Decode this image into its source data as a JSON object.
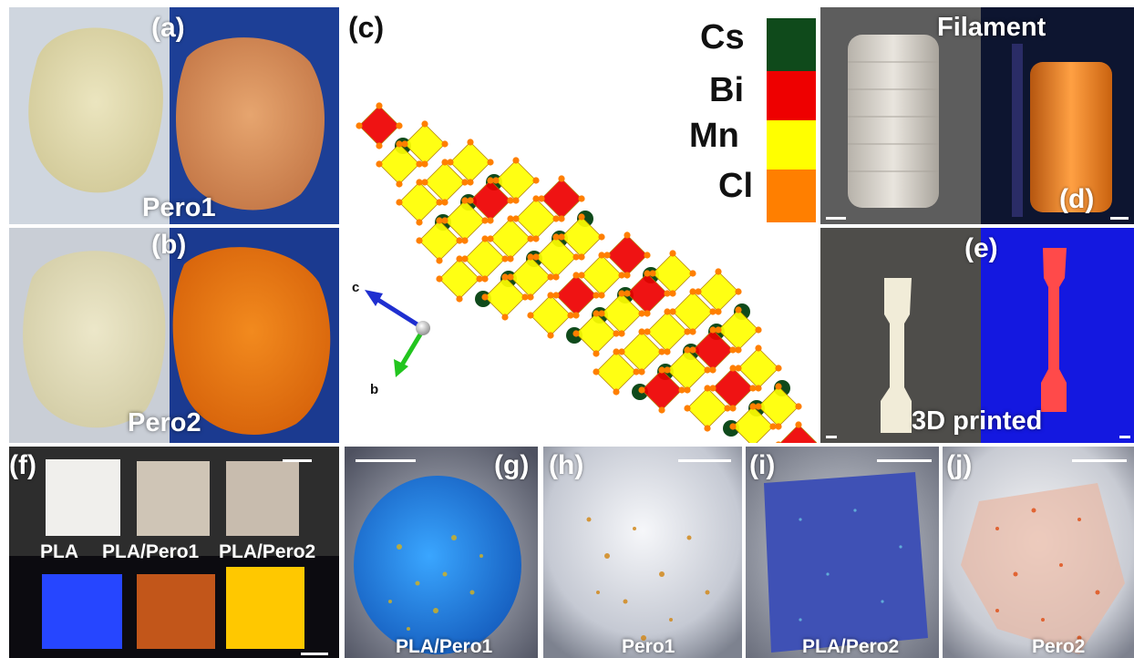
{
  "panels": {
    "a": {
      "label": "(a)",
      "caption": "Pero1"
    },
    "b": {
      "label": "(b)",
      "caption": "Pero2"
    },
    "c": {
      "label": "(c)"
    },
    "d": {
      "label": "(d)",
      "caption": "Filament"
    },
    "e": {
      "label": "(e)",
      "caption": "3D printed"
    },
    "f": {
      "label": "(f)",
      "samples": [
        "PLA",
        "PLA/Pero1",
        "PLA/Pero2"
      ]
    },
    "g": {
      "label": "(g)",
      "caption": "PLA/Pero1"
    },
    "h": {
      "label": "(h)",
      "caption": "Pero1"
    },
    "i": {
      "label": "(i)",
      "caption": "PLA/Pero2"
    },
    "j": {
      "label": "(j)",
      "caption": "Pero2"
    }
  },
  "legend": [
    {
      "element": "Cs",
      "color": "#0f4a1b"
    },
    {
      "element": "Bi",
      "color": "#ee0000"
    },
    {
      "element": "Mn",
      "color": "#ffff00"
    },
    {
      "element": "Cl",
      "color": "#ff7f00"
    }
  ],
  "axes": [
    {
      "name": "c",
      "color": "#1f2fd0"
    },
    {
      "name": "b",
      "color": "#22c51e"
    }
  ],
  "colors": {
    "uv_blue": "#1030b8",
    "pero_orange": "#e86d12",
    "powder_beige": "#e3ddb6",
    "pla_blue_fluor": "#2646ff",
    "pero2_yellow_fluor": "#ffc800"
  }
}
